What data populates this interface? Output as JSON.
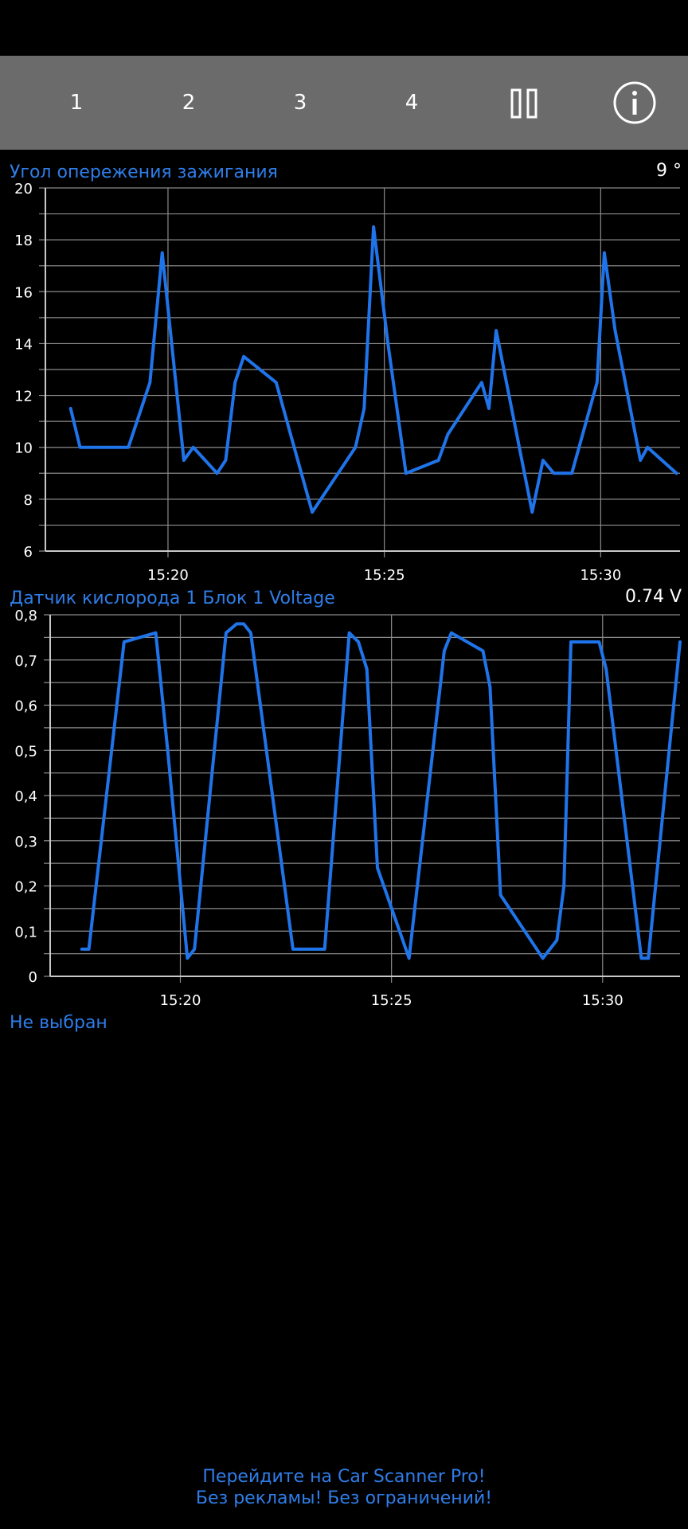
{
  "toolbar": {
    "tabs": [
      "1",
      "2",
      "3",
      "4"
    ],
    "pause_icon": "pause-icon",
    "info_icon": "info-icon"
  },
  "colors": {
    "line": "#1f74ea",
    "title": "#2f7de8",
    "grid": "#8a8a8a",
    "toolbar": "#6b6b6b"
  },
  "panels": [
    {
      "title": "Угол опережения зажигания",
      "value": "9 °"
    },
    {
      "title": "Датчик кислорода 1 Блок 1 Voltage",
      "value": "0.74 V"
    }
  ],
  "unselected_label": "Не выбран",
  "promo": {
    "line1": "Перейдите на Car Scanner Pro!",
    "line2": "Без рекламы! Без ограничений!"
  },
  "chart_data": [
    {
      "type": "line",
      "title": "Угол опережения зажигания",
      "xlabel": "",
      "ylabel": "",
      "x_ticks": [
        "15:20",
        "15:25",
        "15:30"
      ],
      "y_ticks": [
        "6",
        "8",
        "10",
        "12",
        "14",
        "16",
        "18",
        "20"
      ],
      "xlim": [
        "15:17:10",
        "15:31:50"
      ],
      "ylim": [
        6,
        20
      ],
      "grid": true,
      "x": [
        "15:17:45",
        "15:17:58",
        "15:18:40",
        "15:19:05",
        "15:19:35",
        "15:19:52",
        "15:20:22",
        "15:20:35",
        "15:21:08",
        "15:21:20",
        "15:21:33",
        "15:21:45",
        "15:22:30",
        "15:23:20",
        "15:24:20",
        "15:24:32",
        "15:24:45",
        "15:25:05",
        "15:25:30",
        "15:26:15",
        "15:26:28",
        "15:27:15",
        "15:27:25",
        "15:27:35",
        "15:28:25",
        "15:28:40",
        "15:28:55",
        "15:29:20",
        "15:29:55",
        "15:30:05",
        "15:30:20",
        "15:30:55",
        "15:31:05",
        "15:31:45"
      ],
      "values": [
        11.5,
        10,
        10,
        10,
        12.5,
        17.5,
        9.5,
        10,
        9,
        9.5,
        12.5,
        13.5,
        12.5,
        7.5,
        10,
        11.5,
        18.5,
        14,
        9,
        9.5,
        10.5,
        12.5,
        11.5,
        14.5,
        7.5,
        9.5,
        9,
        9,
        12.5,
        17.5,
        14.5,
        9.5,
        10,
        9
      ]
    },
    {
      "type": "line",
      "title": "Датчик кислорода 1 Блок 1 Voltage",
      "xlabel": "",
      "ylabel": "",
      "x_ticks": [
        "15:20",
        "15:25",
        "15:30"
      ],
      "y_ticks": [
        "0",
        "0,1",
        "0,2",
        "0,3",
        "0,4",
        "0,5",
        "0,6",
        "0,7",
        "0,8"
      ],
      "xlim": [
        "15:16:55",
        "15:31:50"
      ],
      "ylim": [
        0,
        0.8
      ],
      "grid": true,
      "x": [
        "15:17:40",
        "15:17:50",
        "15:18:40",
        "15:19:25",
        "15:19:42",
        "15:20:10",
        "15:20:20",
        "15:21:05",
        "15:21:20",
        "15:21:30",
        "15:21:40",
        "15:22:40",
        "15:23:25",
        "15:24:00",
        "15:24:13",
        "15:24:25",
        "15:24:40",
        "15:25:25",
        "15:26:15",
        "15:26:25",
        "15:27:10",
        "15:27:20",
        "15:27:35",
        "15:28:35",
        "15:28:55",
        "15:29:05",
        "15:29:15",
        "15:29:55",
        "15:30:05",
        "15:30:55",
        "15:31:05",
        "15:31:50"
      ],
      "values": [
        0.06,
        0.06,
        0.74,
        0.76,
        0.5,
        0.04,
        0.06,
        0.76,
        0.78,
        0.78,
        0.76,
        0.06,
        0.06,
        0.76,
        0.74,
        0.68,
        0.24,
        0.04,
        0.72,
        0.76,
        0.72,
        0.64,
        0.18,
        0.04,
        0.08,
        0.2,
        0.74,
        0.74,
        0.68,
        0.04,
        0.04,
        0.74
      ]
    }
  ]
}
